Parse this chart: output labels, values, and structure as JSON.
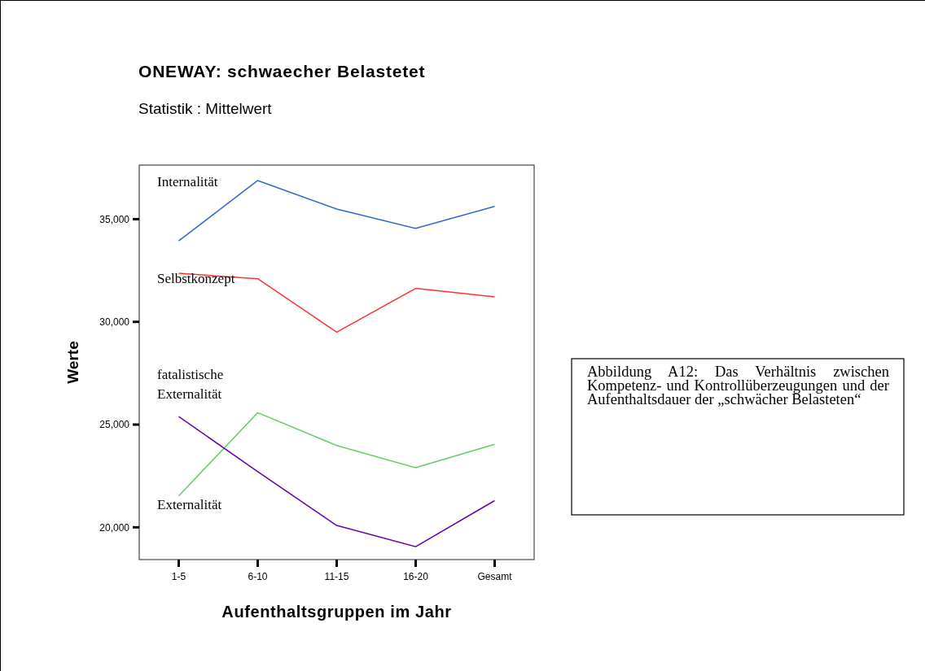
{
  "chart_data": {
    "type": "line",
    "title": "ONEWAY: schwaecher Belastetet",
    "subtitle": "Statistik : Mittelwert",
    "xlabel": "Aufenthaltsgruppen im Jahr",
    "ylabel": "Werte",
    "categories": [
      "1-5",
      "6-10",
      "11-15",
      "16-20",
      "Gesamt"
    ],
    "series": [
      {
        "name": "Internalität",
        "color": "#3366cc",
        "values": [
          33940,
          36880,
          35490,
          34550,
          35620
        ]
      },
      {
        "name": "Selbstkonzept",
        "color": "#ff3333",
        "values": [
          32360,
          32100,
          29500,
          31630,
          31220
        ]
      },
      {
        "name": "Externalität",
        "color": "#66cc66",
        "values": [
          21530,
          25580,
          23980,
          22900,
          24040
        ]
      },
      {
        "name": "fatalistische Externalität",
        "color": "#6600aa",
        "values": [
          25390,
          22710,
          20090,
          19060,
          21300
        ]
      }
    ],
    "ylim": [
      18430,
      37630
    ],
    "yticks": [
      {
        "value": 20000,
        "label": "20,000"
      },
      {
        "value": 25000,
        "label": "25,000"
      },
      {
        "value": 30000,
        "label": "30,000"
      },
      {
        "value": 35000,
        "label": "35,000"
      }
    ],
    "grid": false,
    "legend": false,
    "marker": "none",
    "line_style": "solid",
    "annotations": [
      "Abbildung A12: Das Verhältnis zwischen Kompetenz- und Kontrollüberzeugungen und der Aufenthaltsdauer der „schwächer Belasteten“"
    ]
  }
}
